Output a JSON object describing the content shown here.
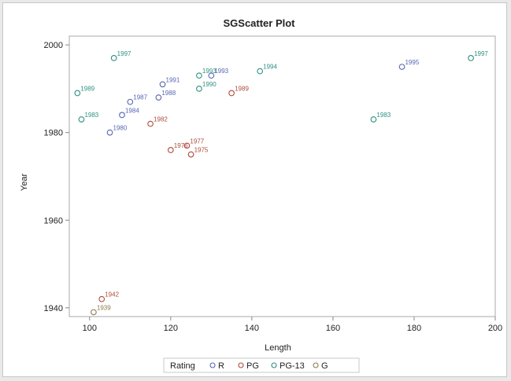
{
  "chart_data": {
    "type": "scatter",
    "title": "SGScatter Plot",
    "xlabel": "Length",
    "ylabel": "Year",
    "xlim": [
      95,
      200
    ],
    "ylim": [
      1938,
      2002
    ],
    "xticks": [
      "100",
      "120",
      "140",
      "160",
      "180",
      "200"
    ],
    "yticks": [
      "1940",
      "1960",
      "1980",
      "2000"
    ],
    "grid": false,
    "legend": {
      "title": "Rating",
      "placement": "bottom",
      "entries": [
        "R",
        "PG",
        "PG-13",
        "G"
      ]
    },
    "colors": {
      "R": "#5566b3",
      "PG": "#b04a3a",
      "PG-13": "#2e9080",
      "G": "#8b7a4e"
    },
    "points": [
      {
        "x": 106,
        "y": 1997,
        "label": "1997",
        "rating": "PG-13"
      },
      {
        "x": 97,
        "y": 1989,
        "label": "1989",
        "rating": "PG-13"
      },
      {
        "x": 98,
        "y": 1983,
        "label": "1983",
        "rating": "PG-13"
      },
      {
        "x": 105,
        "y": 1980,
        "label": "1980",
        "rating": "R"
      },
      {
        "x": 108,
        "y": 1984,
        "label": "1984",
        "rating": "R"
      },
      {
        "x": 110,
        "y": 1987,
        "label": "1987",
        "rating": "R"
      },
      {
        "x": 118,
        "y": 1991,
        "label": "1991",
        "rating": "R"
      },
      {
        "x": 117,
        "y": 1988,
        "label": "1988",
        "rating": "R"
      },
      {
        "x": 115,
        "y": 1982,
        "label": "1982",
        "rating": "PG"
      },
      {
        "x": 127,
        "y": 1993,
        "label": "1993",
        "rating": "PG-13"
      },
      {
        "x": 127,
        "y": 1990,
        "label": "1990",
        "rating": "PG-13"
      },
      {
        "x": 130,
        "y": 1993,
        "label": "1993",
        "rating": "R"
      },
      {
        "x": 135,
        "y": 1989,
        "label": "1989",
        "rating": "PG"
      },
      {
        "x": 142,
        "y": 1994,
        "label": "1994",
        "rating": "PG-13"
      },
      {
        "x": 124,
        "y": 1977,
        "label": "1977",
        "rating": "PG"
      },
      {
        "x": 120,
        "y": 1976,
        "label": "1976",
        "rating": "PG"
      },
      {
        "x": 125,
        "y": 1975,
        "label": "1975",
        "rating": "PG"
      },
      {
        "x": 170,
        "y": 1983,
        "label": "1983",
        "rating": "PG-13"
      },
      {
        "x": 177,
        "y": 1995,
        "label": "1995",
        "rating": "R"
      },
      {
        "x": 194,
        "y": 1997,
        "label": "1997",
        "rating": "PG-13"
      },
      {
        "x": 103,
        "y": 1942,
        "label": "1942",
        "rating": "PG"
      },
      {
        "x": 101,
        "y": 1939,
        "label": "1939",
        "rating": "G"
      }
    ]
  }
}
